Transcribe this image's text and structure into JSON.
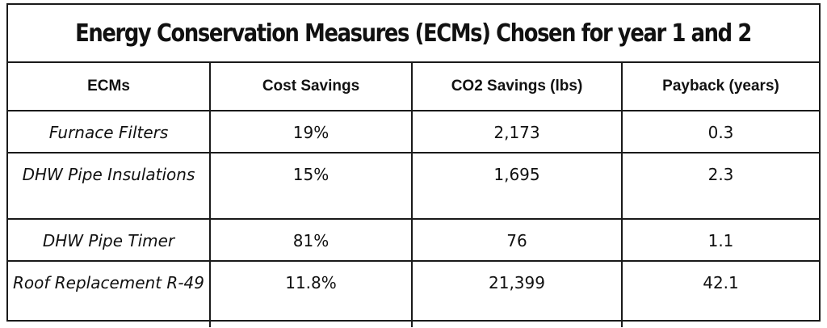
{
  "title": "Energy Conservation Measures (ECMs) Chosen for year 1 and 2",
  "columns": [
    "ECMs",
    "Cost Savings",
    "CO2 Savings (lbs)",
    "Payback (years)"
  ],
  "rows": [
    {
      "ecm": "Furnace Filters",
      "cost_savings": "19%",
      "co2_savings": "2,173",
      "payback": "0.3"
    },
    {
      "ecm": "DHW Pipe Insulations",
      "cost_savings": "15%",
      "co2_savings": "1,695",
      "payback": "2.3"
    },
    {
      "ecm": "DHW Pipe Timer",
      "cost_savings": "81%",
      "co2_savings": "76",
      "payback": "1.1"
    },
    {
      "ecm": "Roof Replacement R-49",
      "cost_savings": "11.8%",
      "co2_savings": "21,399",
      "payback": "42.1"
    }
  ]
}
